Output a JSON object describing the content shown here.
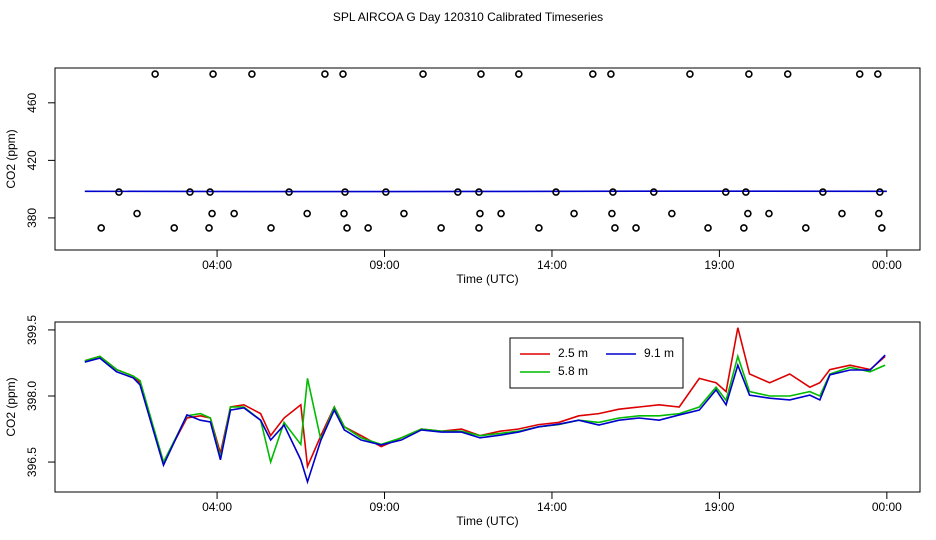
{
  "chart_data": [
    {
      "type": "line",
      "title": "SPL AIRCOA G  Day 120310  Calibrated Timeseries",
      "xlabel": "Time (UTC)",
      "ylabel": "CO2 (ppm)",
      "xlim": [
        -0.84,
        24.99
      ],
      "ylim": [
        357.7,
        484.2
      ],
      "xticks": [
        {
          "value": 4,
          "label": "04:00"
        },
        {
          "value": 9,
          "label": "09:00"
        },
        {
          "value": 14,
          "label": "14:00"
        },
        {
          "value": 19,
          "label": "19:00"
        },
        {
          "value": 24,
          "label": "00:00"
        }
      ],
      "yticks": [
        380,
        420,
        460
      ],
      "series": [
        {
          "color": "#0000cc",
          "x": [
            0.05,
            6,
            12,
            18,
            24.0
          ],
          "values": [
            398.5,
            398.3,
            398.4,
            398.6,
            398.5
          ]
        },
        {
          "marker": "circle",
          "color": "#000000",
          "x": [
            2.15,
            3.88,
            5.04,
            7.22,
            7.76,
            10.15,
            11.88,
            13.01,
            15.22,
            15.76,
            18.12,
            19.88,
            21.04,
            23.19,
            23.73,
            1.07,
            3.19,
            3.79,
            6.15,
            7.82,
            9.04,
            11.19,
            11.82,
            14.12,
            15.82,
            17.04,
            19.19,
            19.79,
            22.09,
            23.79,
            1.61,
            3.85,
            4.51,
            6.69,
            7.79,
            9.58,
            11.85,
            12.48,
            14.66,
            15.79,
            17.58,
            19.85,
            20.48,
            22.66,
            23.76,
            0.54,
            2.72,
            3.76,
            5.61,
            7.88,
            8.51,
            10.69,
            11.82,
            13.61,
            15.88,
            16.51,
            18.66,
            19.73,
            21.58,
            23.85
          ],
          "values": [
            480,
            480,
            480,
            480,
            480,
            480,
            480,
            480,
            480,
            480,
            480,
            480,
            480,
            480,
            480,
            398,
            398,
            398,
            398,
            398,
            398,
            398,
            398,
            398,
            398,
            398,
            398,
            398,
            398,
            398,
            383,
            383,
            383,
            383,
            383,
            383,
            383,
            383,
            383,
            383,
            383,
            383,
            383,
            383,
            383,
            373,
            373,
            373,
            373,
            373,
            373,
            373,
            373,
            373,
            373,
            373,
            373,
            373,
            373,
            373
          ]
        }
      ]
    },
    {
      "type": "line",
      "xlabel": "Time (UTC)",
      "ylabel": "CO2 (ppm)",
      "xlim": [
        -0.84,
        24.99
      ],
      "ylim": [
        395.82,
        399.68
      ],
      "xticks": [
        {
          "value": 4,
          "label": "04:00"
        },
        {
          "value": 9,
          "label": "09:00"
        },
        {
          "value": 14,
          "label": "14:00"
        },
        {
          "value": 19,
          "label": "19:00"
        },
        {
          "value": 24,
          "label": "00:00"
        }
      ],
      "yticks": [
        396.5,
        {
          "value": 398,
          "label": "398.0"
        },
        399.5
      ],
      "legend": "top",
      "legend_columns": 2,
      "x": [
        0.05,
        0.5,
        1.0,
        1.5,
        1.7,
        2.4,
        3.1,
        3.5,
        3.8,
        4.1,
        4.4,
        4.8,
        5.3,
        5.6,
        6.0,
        6.5,
        6.7,
        7.1,
        7.5,
        7.8,
        8.3,
        8.9,
        9.5,
        10.1,
        10.7,
        11.3,
        11.85,
        12.45,
        13.0,
        13.6,
        14.2,
        14.8,
        15.4,
        16.0,
        16.6,
        17.2,
        17.8,
        18.4,
        18.9,
        19.2,
        19.55,
        19.9,
        20.5,
        21.1,
        21.7,
        22.0,
        22.3,
        22.9,
        23.5,
        23.95
      ],
      "series": [
        {
          "name": "2.5 m",
          "color": "#dd0000",
          "values": [
            398.8,
            398.9,
            398.6,
            398.45,
            398.3,
            396.5,
            397.5,
            397.55,
            397.5,
            396.7,
            397.75,
            397.8,
            397.6,
            397.1,
            397.5,
            397.8,
            396.4,
            397.1,
            397.75,
            397.3,
            397.1,
            396.85,
            397.05,
            397.25,
            397.2,
            397.25,
            397.1,
            397.2,
            397.25,
            397.35,
            397.4,
            397.55,
            397.6,
            397.7,
            397.75,
            397.8,
            397.75,
            398.4,
            398.3,
            398.1,
            399.55,
            398.5,
            398.3,
            398.5,
            398.2,
            398.3,
            398.6,
            398.7,
            398.6,
            398.9
          ]
        },
        {
          "name": "5.8 m",
          "color": "#00bb00",
          "values": [
            398.8,
            398.9,
            398.6,
            398.45,
            398.35,
            396.5,
            397.55,
            397.6,
            397.5,
            396.6,
            397.75,
            397.75,
            397.45,
            396.5,
            397.4,
            396.9,
            398.4,
            397.0,
            397.75,
            397.3,
            397.05,
            396.9,
            397.05,
            397.25,
            397.2,
            397.2,
            397.1,
            397.15,
            397.2,
            397.3,
            397.35,
            397.45,
            397.4,
            397.5,
            397.55,
            397.55,
            397.6,
            397.75,
            398.2,
            397.9,
            398.9,
            398.1,
            398.0,
            398.0,
            398.1,
            398.0,
            398.5,
            398.65,
            398.55,
            398.7
          ]
        },
        {
          "name": "9.1 m",
          "color": "#0000cc",
          "values": [
            398.77,
            398.86,
            398.55,
            398.41,
            398.25,
            396.43,
            397.57,
            397.45,
            397.41,
            396.55,
            397.68,
            397.73,
            397.45,
            397.0,
            397.34,
            396.55,
            396.05,
            397.0,
            397.68,
            397.23,
            397.0,
            396.89,
            397.0,
            397.23,
            397.18,
            397.18,
            397.05,
            397.11,
            397.18,
            397.3,
            397.36,
            397.45,
            397.34,
            397.45,
            397.5,
            397.45,
            397.57,
            397.68,
            398.14,
            397.8,
            398.7,
            398.02,
            397.95,
            397.91,
            398.02,
            397.91,
            398.48,
            398.59,
            398.59,
            398.93
          ]
        }
      ]
    }
  ]
}
